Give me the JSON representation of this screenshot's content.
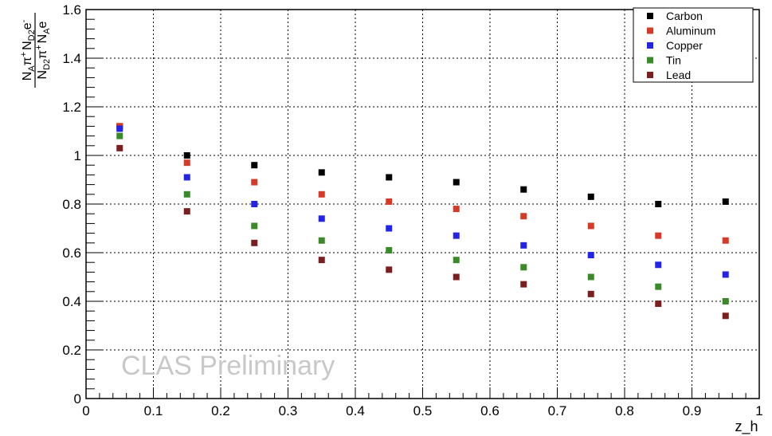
{
  "chart_data": {
    "type": "scatter",
    "xlabel": "z_h",
    "ylabel": {
      "num": {
        "a": "N",
        "a_sub": "A",
        "b": "π",
        "b_sup": "+",
        "c": "N",
        "c_sub": "D2",
        "d": "e",
        "d_sup": "-"
      },
      "den": {
        "a": "N",
        "a_sub": "D2",
        "b": "π",
        "b_sup": "+",
        "c": "N",
        "c_sub": "A",
        "d": "e"
      }
    },
    "xlim": [
      0,
      1
    ],
    "ylim": [
      0,
      1.6
    ],
    "x_ticks": [
      "0",
      "0.1",
      "0.2",
      "0.3",
      "0.4",
      "0.5",
      "0.6",
      "0.7",
      "0.8",
      "0.9",
      "1"
    ],
    "y_ticks": [
      "0",
      "0.2",
      "0.4",
      "0.6",
      "0.8",
      "1",
      "1.2",
      "1.4",
      "1.6"
    ],
    "grid": true,
    "legend_position": "top-right",
    "watermark": "CLAS Preliminary",
    "x": [
      0.05,
      0.15,
      0.25,
      0.35,
      0.45,
      0.55,
      0.65,
      0.75,
      0.85,
      0.95
    ],
    "series": [
      {
        "name": "Carbon",
        "color": "#000000",
        "values": [
          1.12,
          1.0,
          0.96,
          0.93,
          0.91,
          0.89,
          0.86,
          0.83,
          0.8,
          0.81
        ]
      },
      {
        "name": "Aluminum",
        "color": "#d63a27",
        "values": [
          1.12,
          0.97,
          0.89,
          0.84,
          0.81,
          0.78,
          0.75,
          0.71,
          0.67,
          0.65
        ]
      },
      {
        "name": "Copper",
        "color": "#2424e6",
        "values": [
          1.11,
          0.91,
          0.8,
          0.74,
          0.7,
          0.67,
          0.63,
          0.59,
          0.55,
          0.51
        ]
      },
      {
        "name": "Tin",
        "color": "#3a8a2a",
        "values": [
          1.08,
          0.84,
          0.71,
          0.65,
          0.61,
          0.57,
          0.54,
          0.5,
          0.46,
          0.4
        ]
      },
      {
        "name": "Lead",
        "color": "#7a1f1f",
        "values": [
          1.03,
          0.77,
          0.64,
          0.57,
          0.53,
          0.5,
          0.47,
          0.43,
          0.39,
          0.34
        ]
      }
    ]
  }
}
